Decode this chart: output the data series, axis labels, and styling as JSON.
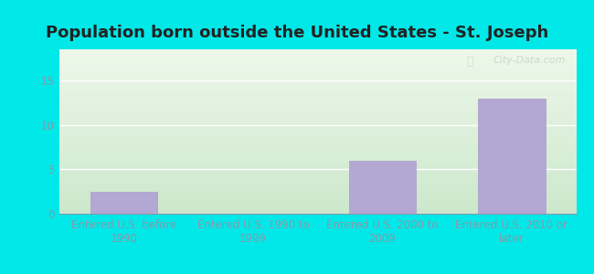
{
  "title": "Population born outside the United States - St. Joseph",
  "categories": [
    "Entered U.S. before\n1990",
    "Entered U.S. 1990 to\n1999",
    "Entered U.S. 2000 to\n2009",
    "Entered U.S. 2010 or\nlater"
  ],
  "values": [
    2.5,
    0,
    6,
    13
  ],
  "bar_color": "#b3a8d4",
  "bar_edge_color": "#a89cc8",
  "ylim": [
    0,
    18.5
  ],
  "yticks": [
    0,
    5,
    10,
    15
  ],
  "outer_bg": "#00e8e8",
  "plot_bg_top": "#eef8ea",
  "plot_bg_bottom": "#cce8cc",
  "title_fontsize": 13,
  "tick_label_fontsize": 8.5,
  "watermark_text": "City-Data.com",
  "watermark_color": "#c8d4c8",
  "grid_color": "#ffffff",
  "tick_color": "#8899aa",
  "title_color": "#222222"
}
